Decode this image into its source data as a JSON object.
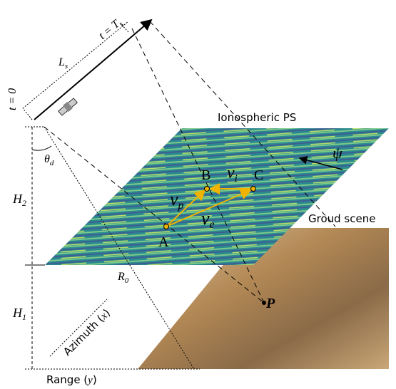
{
  "labels": {
    "t_end": {
      "left": "t = T",
      "sub": "s"
    },
    "length": {
      "symbol": "L",
      "sub": "s"
    },
    "t_start": "t = 0",
    "ionosphere": "Ionospheric PS",
    "angle": {
      "symbol": "θ",
      "sub": "d"
    },
    "h2": {
      "symbol": "H",
      "sub": "2"
    },
    "h1": {
      "symbol": "H",
      "sub": "1"
    },
    "range_distance": {
      "symbol": "R",
      "sub": "0"
    },
    "ground": "Groud scene",
    "azimuth": {
      "text": "Azimuth (",
      "var": "x",
      "close": ")"
    },
    "range": {
      "text": "Range (",
      "var": "y",
      "close": ")"
    },
    "drift_angle": "ψ"
  },
  "points": {
    "a": "A",
    "b": "B",
    "c": "C",
    "p": "P"
  },
  "velocities": {
    "vi": {
      "symbol": "v",
      "sub": "i"
    },
    "vp": {
      "symbol": "v",
      "sub": "p"
    },
    "ve": {
      "symbol": "v",
      "sub": "e"
    }
  }
}
